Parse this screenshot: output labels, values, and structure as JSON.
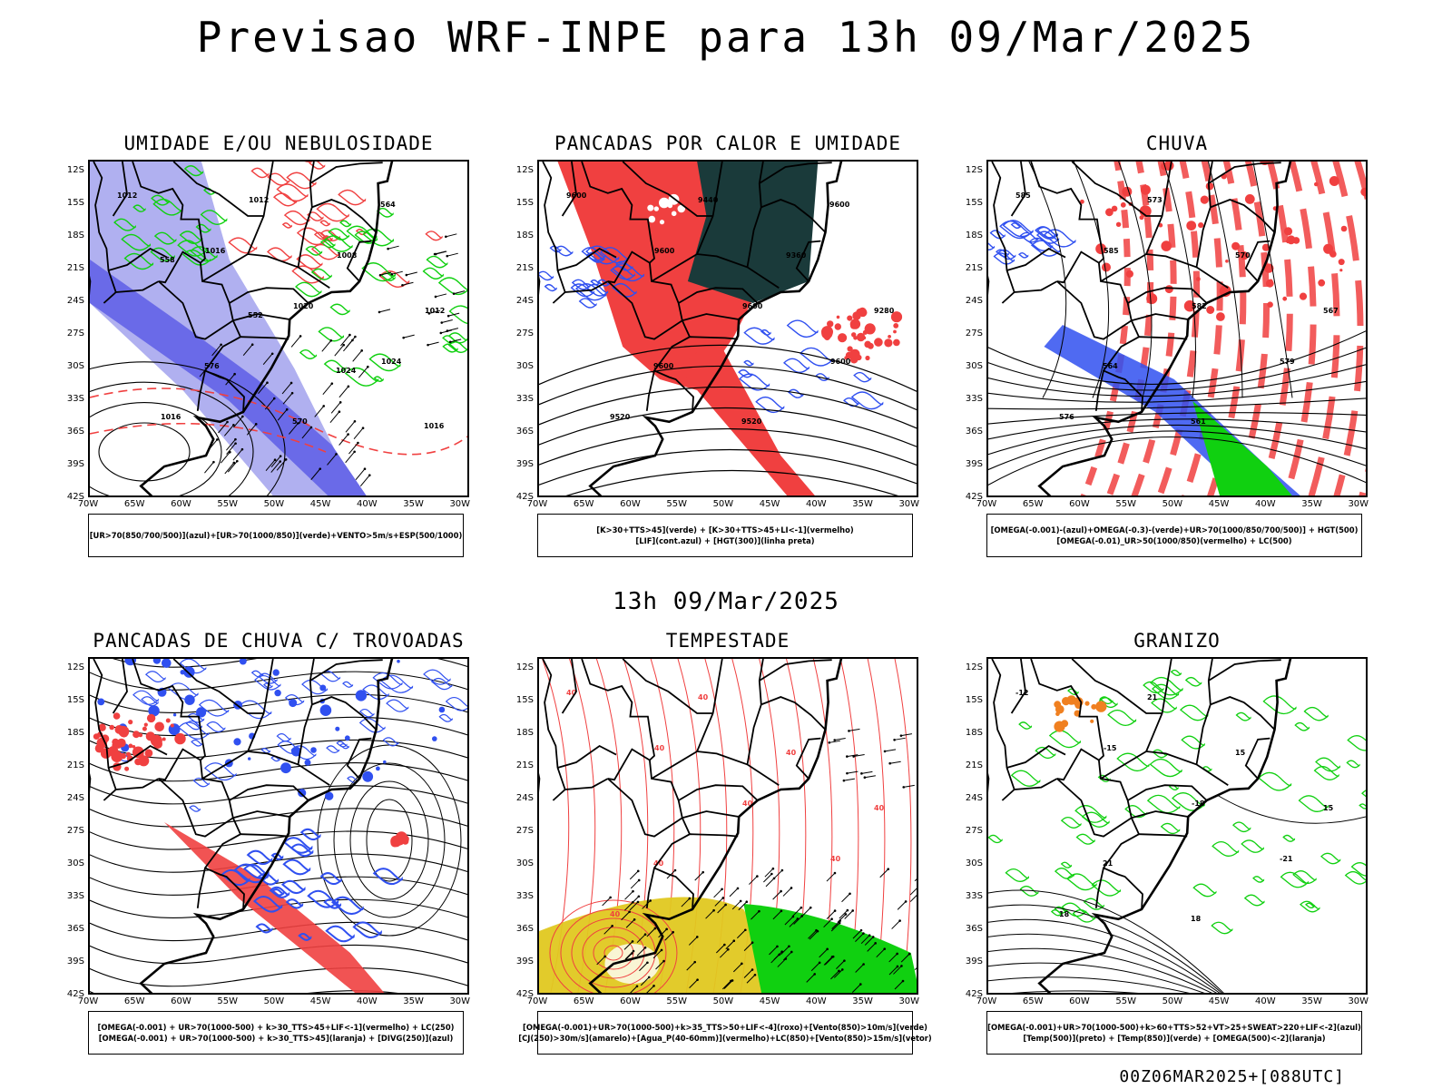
{
  "main_title": "Previsao WRF-INPE  para 13h 09/Mar/2025",
  "mid_title": "13h 09/Mar/2025",
  "footer": "00Z06MAR2025+[088UTC]",
  "y_ticks": [
    "12S",
    "15S",
    "18S",
    "21S",
    "24S",
    "27S",
    "30S",
    "33S",
    "36S",
    "39S",
    "42S"
  ],
  "x_ticks": [
    "70W",
    "65W",
    "60W",
    "55W",
    "50W",
    "45W",
    "40W",
    "35W",
    "30W"
  ],
  "colors": {
    "red": "#f04040",
    "blue": "#3050f0",
    "green": "#10d010",
    "lavender": "#b0b0f0",
    "darkteal": "#1a3a3a",
    "yellow": "#e0c820",
    "orange": "#f08020"
  },
  "panels": [
    {
      "title": "UMIDADE E/OU NEBULOSIDADE",
      "legend": [
        "[UR>70(850/700/500)](azul)+[UR>70(1000/850)](verde)+VENTO>5m/s+ESP(500/1000)"
      ],
      "contour_labels": [
        "1012",
        "1016",
        "1020",
        "1024",
        "1016",
        "1012",
        "1008",
        "1012",
        "576",
        "570",
        "564",
        "558",
        "552",
        "1024",
        "1016"
      ]
    },
    {
      "title": "PANCADAS POR CALOR E UMIDADE",
      "legend": [
        "[K>30+TTS>45](verde) + [K>30+TTS>45+LI<-1](vermelho)",
        "[LIF](cont.azul) + [HGT(300)](linha preta)"
      ],
      "contour_labels": [
        "9600",
        "9600",
        "9600",
        "9600",
        "9520",
        "9440",
        "9360",
        "9280",
        "9600",
        "9520",
        "9600"
      ]
    },
    {
      "title": "CHUVA",
      "legend": [
        "[OMEGA(-0.001)-(azul)+OMEGA(-0.3)-(verde)+UR>70(1000/850/700/500)] + HGT(500)",
        "[OMEGA(-0.01)_UR>50(1000/850)(vermelho) + LC(500)"
      ],
      "contour_labels": [
        "585",
        "585",
        "582",
        "579",
        "576",
        "573",
        "570",
        "567",
        "564",
        "561"
      ]
    },
    {
      "title": "PANCADAS DE CHUVA C/ TROVOADAS",
      "legend": [
        "[OMEGA(-0.001) + UR>70(1000-500) + k>30_TTS>45+LIF<-1](vermelho) + LC(250)",
        "[OMEGA(-0.001) + UR>70(1000-500) + k>30_TTS>45](laranja) + [DIVG(250)](azul)"
      ],
      "contour_labels": []
    },
    {
      "title": "TEMPESTADE",
      "legend": [
        "[OMEGA(-0.001)+UR>70(1000-500)+k>35_TTS>50+LIF<-4](roxo)+[Vento(850)>10m/s](verde)",
        "[CJ(250)>30m/s](amarelo)+[Agua_P(40-60mm)](vermelho)+LC(850)+[Vento(850)>15m/s](vetor)"
      ],
      "contour_labels": [
        "40",
        "40",
        "40",
        "40",
        "40",
        "40",
        "40",
        "40",
        "40"
      ]
    },
    {
      "title": "GRANIZO",
      "legend": [
        "[OMEGA(-0.001)+UR>70(1000-500)+k>60+TTS>52+VT>25+SWEAT>220+LIF<-2](azul)",
        "[Temp(500)](preto) + [Temp(850)](verde) + [OMEGA(500)<-2](laranja)"
      ],
      "contour_labels": [
        "-12",
        "-15",
        "-18",
        "-21",
        "18",
        "21",
        "15",
        "15",
        "21",
        "18"
      ]
    }
  ]
}
